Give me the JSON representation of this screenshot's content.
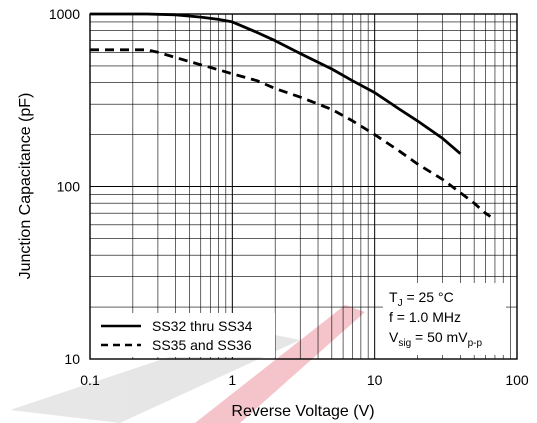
{
  "chart_data": {
    "type": "line",
    "title": "",
    "xlabel": "Reverse Voltage (V)",
    "ylabel": "Junction Capacitance (pF)",
    "xscale": "log",
    "yscale": "log",
    "xlim": [
      0.1,
      100
    ],
    "ylim": [
      10,
      1000
    ],
    "grid": true,
    "x_ticks": [
      0.1,
      1,
      10,
      100
    ],
    "x_tick_labels": [
      "0.1",
      "1",
      "10",
      "100"
    ],
    "y_ticks": [
      10,
      100,
      1000
    ],
    "y_tick_labels": [
      "10",
      "100",
      "1000"
    ],
    "legend_position": "bottom-left",
    "series": [
      {
        "name": "SS32 thru SS34",
        "style": "solid",
        "x": [
          0.1,
          0.15,
          0.25,
          0.4,
          0.6,
          0.8,
          1,
          1.5,
          2,
          3,
          5,
          7,
          10,
          15,
          20,
          30,
          40
        ],
        "y": [
          1000,
          1000,
          1000,
          990,
          960,
          930,
          900,
          780,
          700,
          590,
          480,
          410,
          350,
          280,
          240,
          190,
          155
        ]
      },
      {
        "name": "SS35 and SS36",
        "style": "dashed",
        "x": [
          0.1,
          0.15,
          0.25,
          0.3,
          0.5,
          0.7,
          1,
          1.5,
          2,
          3,
          5,
          7,
          10,
          15,
          20,
          30,
          40,
          50,
          60,
          65
        ],
        "y": [
          620,
          620,
          620,
          600,
          530,
          490,
          450,
          410,
          370,
          330,
          280,
          240,
          200,
          160,
          135,
          110,
          92,
          80,
          70,
          67
        ]
      }
    ],
    "conditions": {
      "line1_main": "T",
      "line1_sub": "J",
      "line1_rest": " = 25 °C",
      "line2": "f = 1.0 MHz",
      "line3_main": "V",
      "line3_sub": "sig",
      "line3_mid": " = 50 mV",
      "line3_sub2": "p-p"
    }
  },
  "colors": {
    "plot_line": "#000000",
    "grid": "#000000",
    "watermark_gray": "#b9b9b9",
    "watermark_red": "#e05a6a"
  }
}
